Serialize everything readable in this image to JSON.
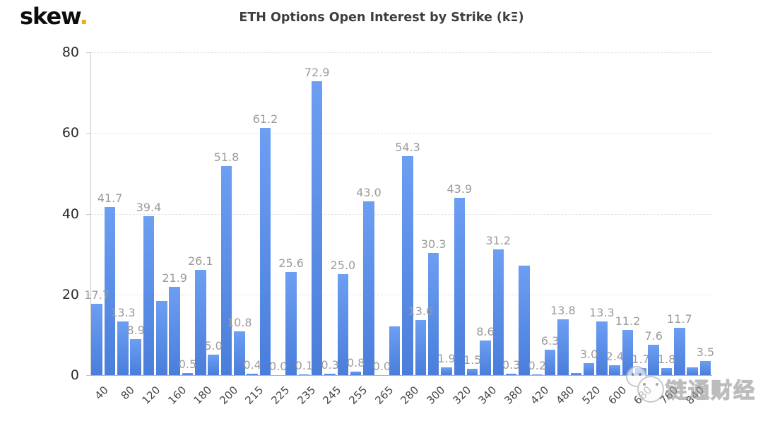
{
  "logo": {
    "brand": "skew",
    "dot": "."
  },
  "header": {
    "title": "ETH Options Open Interest by Strike (kΞ)"
  },
  "watermark": {
    "text": "链通财经"
  },
  "colors": {
    "bar_top": "#6C9EF2",
    "bar_bottom": "#4A7EDB",
    "data_label": "#9B9B9B",
    "grid": "#E2E2E2",
    "axis": "#C8C8C8",
    "baseline": "#B5B5B5",
    "y_label": "#2B2B2B",
    "x_label": "#464646",
    "title": "#3E3E3E",
    "logo_dot": "#F2A71B"
  },
  "chart_data": {
    "type": "bar",
    "title": "ETH Options Open Interest by Strike (kΞ)",
    "unit": "kΞ",
    "xlabel": "Strike",
    "ylabel": "",
    "ylim": [
      0,
      80
    ],
    "yticks": [
      0,
      20,
      40,
      60,
      80
    ],
    "grid": "horizontal dashed gridlines, white background",
    "legend": "none",
    "x_tick_note": "axis labels shown under every other bar, rotated -45deg",
    "bars": [
      {
        "tick": "40",
        "value": 17.7,
        "label": "17.7"
      },
      {
        "tick": "",
        "value": 41.7,
        "label": "41.7"
      },
      {
        "tick": "80",
        "value": 13.3,
        "label": "13.3"
      },
      {
        "tick": "",
        "value": 8.9,
        "label": "8.9"
      },
      {
        "tick": "120",
        "value": 39.4,
        "label": "39.4"
      },
      {
        "tick": "",
        "value": 18.3,
        "label": ""
      },
      {
        "tick": "160",
        "value": 21.9,
        "label": "21.9"
      },
      {
        "tick": "",
        "value": 0.5,
        "label": "0.5"
      },
      {
        "tick": "180",
        "value": 26.1,
        "label": "26.1"
      },
      {
        "tick": "",
        "value": 5.0,
        "label": "5.0"
      },
      {
        "tick": "200",
        "value": 51.8,
        "label": "51.8"
      },
      {
        "tick": "",
        "value": 10.8,
        "label": "10.8"
      },
      {
        "tick": "215",
        "value": 0.4,
        "label": "0.4"
      },
      {
        "tick": "",
        "value": 61.2,
        "label": "61.2"
      },
      {
        "tick": "225",
        "value": 0.0,
        "label": "0.0"
      },
      {
        "tick": "",
        "value": 25.6,
        "label": "25.6"
      },
      {
        "tick": "235",
        "value": 0.1,
        "label": "0.1"
      },
      {
        "tick": "",
        "value": 72.9,
        "label": "72.9"
      },
      {
        "tick": "245",
        "value": 0.3,
        "label": "0.3"
      },
      {
        "tick": "",
        "value": 25.0,
        "label": "25.0"
      },
      {
        "tick": "255",
        "value": 0.8,
        "label": "0.8"
      },
      {
        "tick": "",
        "value": 43.0,
        "label": "43.0"
      },
      {
        "tick": "265",
        "value": 0.0,
        "label": "0.0"
      },
      {
        "tick": "",
        "value": 12.0,
        "label": ""
      },
      {
        "tick": "280",
        "value": 54.3,
        "label": "54.3"
      },
      {
        "tick": "",
        "value": 13.6,
        "label": "13.6"
      },
      {
        "tick": "300",
        "value": 30.3,
        "label": "30.3"
      },
      {
        "tick": "",
        "value": 1.9,
        "label": "1.9"
      },
      {
        "tick": "320",
        "value": 43.9,
        "label": "43.9"
      },
      {
        "tick": "",
        "value": 1.5,
        "label": "1.5"
      },
      {
        "tick": "340",
        "value": 8.6,
        "label": "8.6"
      },
      {
        "tick": "",
        "value": 31.2,
        "label": "31.2"
      },
      {
        "tick": "380",
        "value": 0.3,
        "label": "0.3"
      },
      {
        "tick": "",
        "value": 27.2,
        "label": ""
      },
      {
        "tick": "420",
        "value": 0.2,
        "label": "0.2"
      },
      {
        "tick": "",
        "value": 6.3,
        "label": "6.3"
      },
      {
        "tick": "480",
        "value": 13.8,
        "label": "13.8"
      },
      {
        "tick": "",
        "value": 0.5,
        "label": ""
      },
      {
        "tick": "520",
        "value": 3.0,
        "label": "3.0"
      },
      {
        "tick": "",
        "value": 13.3,
        "label": "13.3"
      },
      {
        "tick": "600",
        "value": 2.4,
        "label": "2.4"
      },
      {
        "tick": "",
        "value": 11.2,
        "label": "11.2"
      },
      {
        "tick": "680",
        "value": 1.7,
        "label": "1.7"
      },
      {
        "tick": "",
        "value": 7.6,
        "label": "7.6"
      },
      {
        "tick": "760",
        "value": 1.8,
        "label": "1.8"
      },
      {
        "tick": "",
        "value": 11.7,
        "label": "11.7"
      },
      {
        "tick": "840",
        "value": 2.0,
        "label": ""
      },
      {
        "tick": "",
        "value": 3.5,
        "label": "3.5"
      }
    ]
  }
}
